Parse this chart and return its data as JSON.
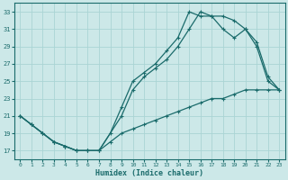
{
  "xlabel": "Humidex (Indice chaleur)",
  "bg_color": "#cce8e8",
  "line_color": "#1a6b6b",
  "grid_color": "#aad4d4",
  "xlim": [
    -0.5,
    23.5
  ],
  "ylim": [
    16,
    34
  ],
  "xticks": [
    0,
    1,
    2,
    3,
    4,
    5,
    6,
    7,
    8,
    9,
    10,
    11,
    12,
    13,
    14,
    15,
    16,
    17,
    18,
    19,
    20,
    21,
    22,
    23
  ],
  "yticks": [
    17,
    19,
    21,
    23,
    25,
    27,
    29,
    31,
    33
  ],
  "line1_x": [
    0,
    1,
    2,
    3,
    4,
    5,
    6,
    7,
    8,
    9,
    10,
    11,
    12,
    13,
    14,
    15,
    16,
    17,
    18,
    19,
    20,
    21,
    22,
    23
  ],
  "line1_y": [
    21,
    20,
    19,
    18,
    17.5,
    17,
    17,
    17,
    19,
    22,
    25,
    26,
    27,
    28.5,
    30,
    33,
    32.5,
    32.5,
    32.5,
    32,
    31,
    29,
    25,
    24
  ],
  "line2_x": [
    0,
    1,
    2,
    3,
    4,
    5,
    6,
    7,
    9,
    10,
    11,
    12,
    13,
    14,
    15,
    16,
    17,
    18,
    19,
    20,
    21,
    22,
    23
  ],
  "line2_y": [
    21,
    20,
    19,
    18,
    17.5,
    17,
    17,
    17,
    21,
    24,
    25.5,
    26.5,
    27.5,
    29,
    31,
    33,
    32.5,
    31,
    30,
    31,
    29.5,
    25.5,
    24
  ],
  "line3_x": [
    0,
    1,
    2,
    3,
    4,
    5,
    6,
    7,
    8,
    9,
    10,
    11,
    12,
    13,
    14,
    15,
    16,
    17,
    18,
    19,
    20,
    21,
    22,
    23
  ],
  "line3_y": [
    21,
    20,
    19,
    18,
    17.5,
    17,
    17,
    17,
    18,
    19,
    19.5,
    20,
    20.5,
    21,
    21.5,
    22,
    22.5,
    23,
    23,
    23.5,
    24,
    24,
    24,
    24
  ]
}
